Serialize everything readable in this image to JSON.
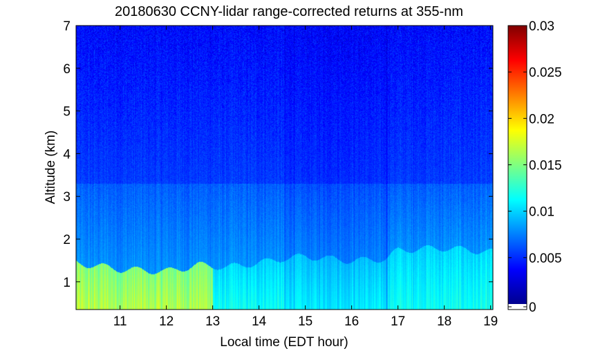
{
  "chart_data": {
    "type": "heatmap",
    "title": "20180630 CCNY-lidar range-corrected returns at 355-nm",
    "xlabel": "Local time (EDT hour)",
    "ylabel": "Altitude (km)",
    "xlim": [
      10.05,
      19.05
    ],
    "ylim": [
      0.35,
      7
    ],
    "x_ticks": [
      11,
      12,
      13,
      14,
      15,
      16,
      17,
      18,
      19
    ],
    "y_ticks": [
      1,
      2,
      3,
      4,
      5,
      6,
      7
    ],
    "colorbar": {
      "colormap": "jet",
      "range": [
        0,
        0.03
      ],
      "ticks": [
        0,
        0.005,
        0.01,
        0.015,
        0.02,
        0.025,
        0.03
      ],
      "tick_labels": [
        "0",
        "0.005",
        "0.01",
        "0.015",
        "0.02",
        "0.025",
        "0.03"
      ],
      "zero_color": "#ffffff"
    },
    "grid": false,
    "boundary_layer_top_km": [
      {
        "t": 10.05,
        "h": 1.45
      },
      {
        "t": 11.0,
        "h": 1.3
      },
      {
        "t": 12.0,
        "h": 1.25
      },
      {
        "t": 12.7,
        "h": 1.4
      },
      {
        "t": 13.3,
        "h": 1.35
      },
      {
        "t": 14.0,
        "h": 1.45
      },
      {
        "t": 14.5,
        "h": 1.55
      },
      {
        "t": 15.0,
        "h": 1.6
      },
      {
        "t": 16.0,
        "h": 1.5
      },
      {
        "t": 16.75,
        "h": 1.55
      },
      {
        "t": 17.0,
        "h": 1.75
      },
      {
        "t": 18.0,
        "h": 1.8
      },
      {
        "t": 19.05,
        "h": 1.7
      }
    ],
    "data_gaps_hour": [
      14.55,
      16.75
    ],
    "typical_values": {
      "boundary_layer": 0.012,
      "boundary_layer_peak": 0.017,
      "free_troposphere_2_to_3km": 0.0065,
      "above_4km": 0.004
    }
  }
}
